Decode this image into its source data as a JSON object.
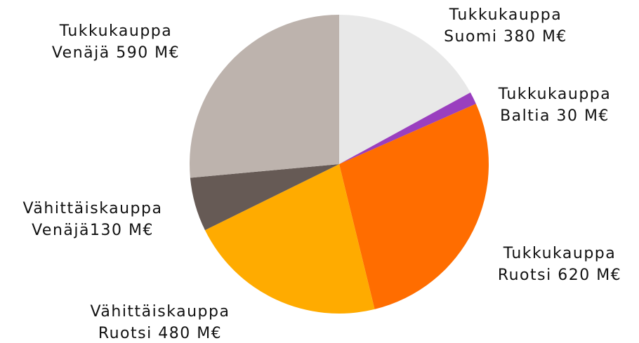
{
  "chart_data": {
    "type": "pie",
    "categories": [
      "Tukkukauppa",
      "Tukkukauppa",
      "Tukkukauppa",
      "Vähittäiskauppa",
      "Vähittäiskauppa",
      "Tukkukauppa"
    ],
    "values": [
      380,
      30,
      620,
      480,
      130,
      590
    ],
    "value_labels": [
      "Suomi 380 M€",
      "Baltia 30 M€",
      "Ruotsi 620 M€",
      "Ruotsi 480 M€",
      "Venäjä130 M€",
      "Venäjä 590 M€"
    ],
    "colors": [
      "#e8e8e8",
      "#9a3fbf",
      "#ff6d00",
      "#ffab00",
      "#665a55",
      "#bdb3ad"
    ]
  }
}
